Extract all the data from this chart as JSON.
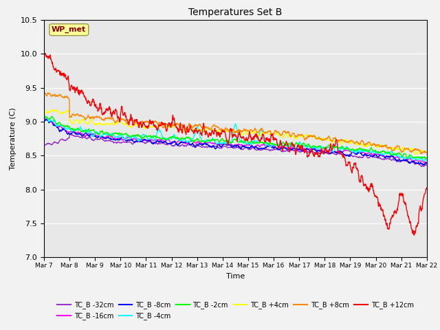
{
  "title": "Temperatures Set B",
  "xlabel": "Time",
  "ylabel": "Temperature (C)",
  "ylim": [
    7.0,
    10.5
  ],
  "yticks": [
    7.0,
    7.5,
    8.0,
    8.5,
    9.0,
    9.5,
    10.0,
    10.5
  ],
  "xtick_labels": [
    "Mar 7",
    "Mar 8",
    "Mar 9",
    "Mar 10",
    "Mar 11",
    "Mar 12",
    "Mar 13",
    "Mar 14",
    "Mar 15",
    "Mar 16",
    "Mar 17",
    "Mar 18",
    "Mar 19",
    "Mar 20",
    "Mar 21",
    "Mar 22"
  ],
  "series": [
    {
      "label": "TC_B -32cm",
      "color": "#9933CC",
      "lw": 1.0
    },
    {
      "label": "TC_B -16cm",
      "color": "#FF00FF",
      "lw": 1.0
    },
    {
      "label": "TC_B -8cm",
      "color": "#0000FF",
      "lw": 1.0
    },
    {
      "label": "TC_B -4cm",
      "color": "#00FFFF",
      "lw": 1.0
    },
    {
      "label": "TC_B -2cm",
      "color": "#00FF00",
      "lw": 1.0
    },
    {
      "label": "TC_B +4cm",
      "color": "#FFFF00",
      "lw": 1.0
    },
    {
      "label": "TC_B +8cm",
      "color": "#FF8800",
      "lw": 1.0
    },
    {
      "label": "TC_B +12cm",
      "color": "#FF0000",
      "lw": 1.0
    }
  ],
  "ax_bg": "#E8E8E8",
  "fig_bg": "#F2F2F2",
  "wp_met_label": "WP_met",
  "wp_met_box_color": "#FFFF99",
  "wp_met_text_color": "#880000",
  "grid_color": "#FFFFFF",
  "figsize": [
    6.4,
    4.8
  ],
  "dpi": 100
}
